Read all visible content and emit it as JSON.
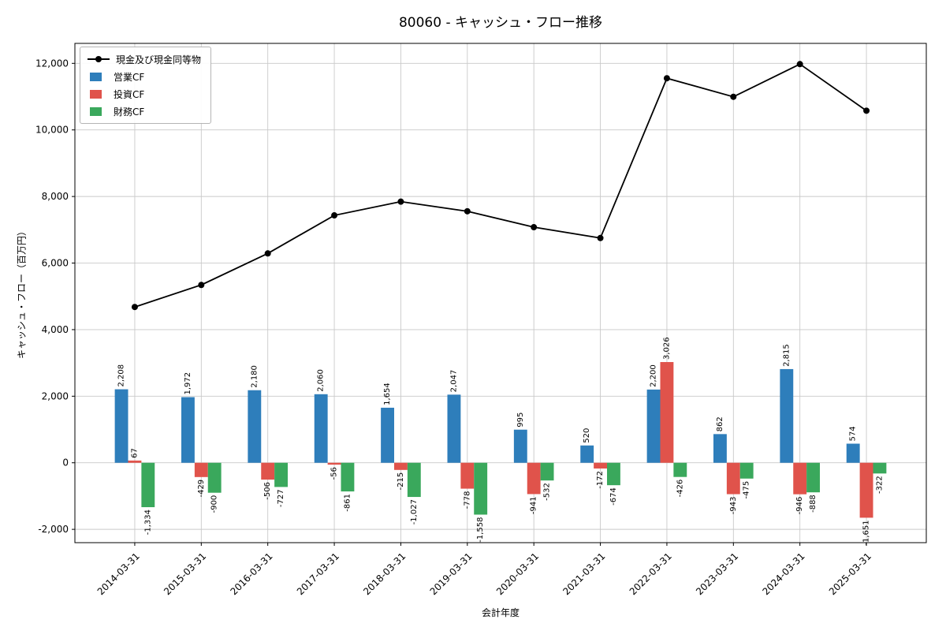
{
  "title": "80060 - キャッシュ・フロー推移",
  "axes": {
    "xlabel": "会計年度",
    "ylabel": "キャッシュ・フロー（百万円）"
  },
  "chart_data": {
    "type": "bar",
    "title": "80060 - キャッシュ・フロー推移",
    "xlabel": "会計年度",
    "ylabel": "キャッシュ・フロー（百万円）",
    "categories": [
      "2014-03-31",
      "2015-03-31",
      "2016-03-31",
      "2017-03-31",
      "2018-03-31",
      "2019-03-31",
      "2020-03-31",
      "2021-03-31",
      "2022-03-31",
      "2023-03-31",
      "2024-03-31",
      "2025-03-31"
    ],
    "series": [
      {
        "name": "現金及び現金同等物",
        "type": "line",
        "color": "#000000",
        "values": [
          4680,
          5343,
          6290,
          7433,
          7845,
          7556,
          7078,
          6752,
          11552,
          10996,
          11977,
          10578
        ]
      },
      {
        "name": "営業CF",
        "type": "bar",
        "color": "#2e7ebb",
        "values": [
          2208,
          1972,
          2180,
          2060,
          1654,
          2047,
          995,
          520,
          2200,
          862,
          2815,
          574
        ]
      },
      {
        "name": "投資CF",
        "type": "bar",
        "color": "#e0534b",
        "values": [
          67,
          -429,
          -506,
          -56,
          -215,
          -778,
          -941,
          -172,
          3026,
          -943,
          -946,
          -1651
        ]
      },
      {
        "name": "財務CF",
        "type": "bar",
        "color": "#3aa85c",
        "values": [
          -1334,
          -900,
          -727,
          -861,
          -1027,
          -1558,
          -532,
          -674,
          -426,
          -475,
          -888,
          -322
        ]
      }
    ],
    "ylim": [
      -2400,
      12600
    ],
    "yticks": [
      -2000,
      0,
      2000,
      4000,
      6000,
      8000,
      10000,
      12000
    ],
    "grid": true,
    "legend_position": "upper left",
    "bar_label_rotation": 90,
    "xtick_rotation": 45
  }
}
